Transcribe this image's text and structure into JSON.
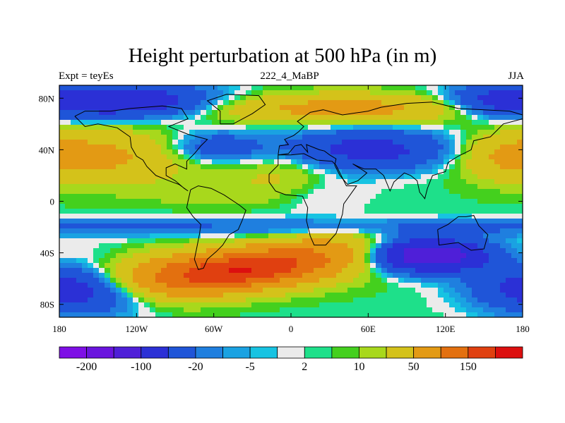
{
  "chart_data": {
    "type": "heatmap",
    "title": "Height perturbation at 500 hPa (in m)",
    "subtitle_left": "Expt = teyEs",
    "subtitle_center": "222_4_MaBP",
    "subtitle_right": "JJA",
    "x_ticks": [
      "180",
      "120W",
      "60W",
      "0",
      "60E",
      "120E",
      "180"
    ],
    "y_ticks": [
      "80N",
      "40N",
      "0",
      "40S",
      "80S"
    ],
    "colorbar_labels": [
      "-200",
      "-100",
      "-20",
      "-5",
      "2",
      "10",
      "50",
      "150"
    ],
    "levels": [
      -250,
      -200,
      -150,
      -100,
      -50,
      -20,
      -10,
      -5,
      -2,
      2,
      5,
      10,
      20,
      50,
      100,
      150,
      200
    ],
    "colors": [
      "#7e0fe6",
      "#6a14de",
      "#4f1fd8",
      "#2b30d6",
      "#1f55d8",
      "#1f7fdf",
      "#1aa2e2",
      "#17c3e2",
      "#ebebeb",
      "#1ee08a",
      "#44d01e",
      "#a8d81c",
      "#d4c21a",
      "#e39a14",
      "#e3700f",
      "#e04010",
      "#dc0f0f"
    ]
  }
}
